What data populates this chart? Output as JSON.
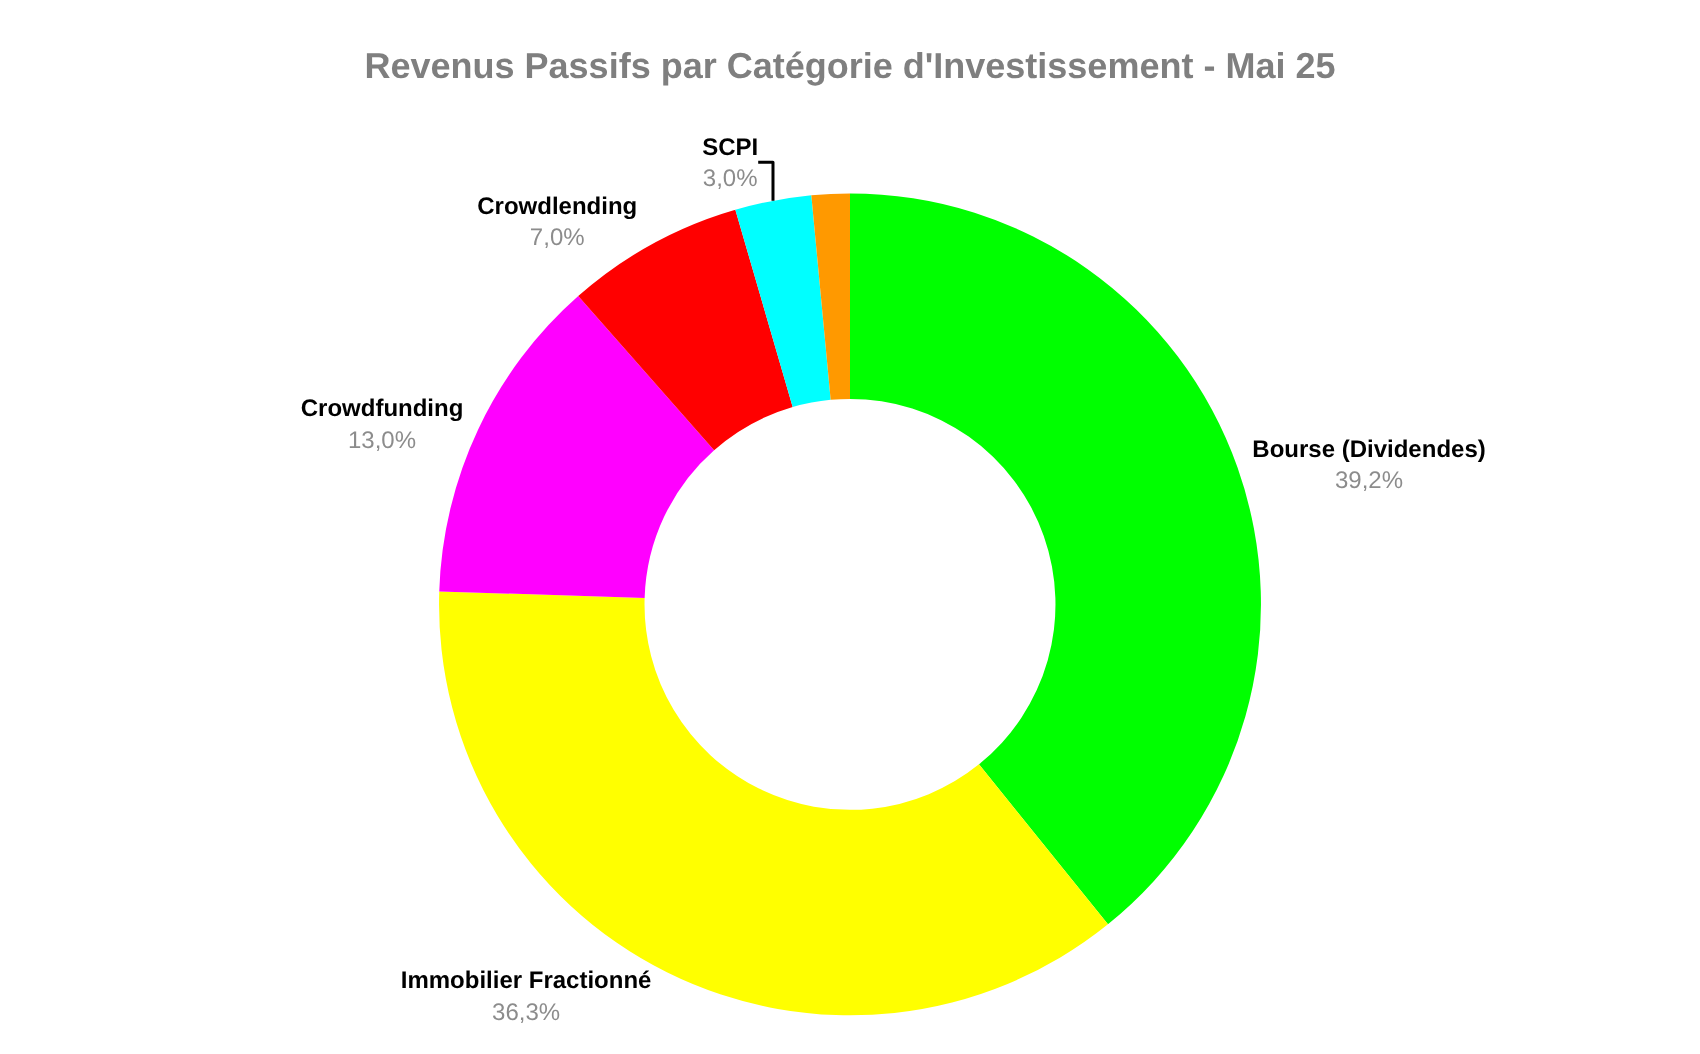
{
  "chart_data": {
    "type": "donut",
    "title": "Revenus Passifs par Catégorie d'Investissement - Mai 25",
    "categories": [
      "Bourse (Dividendes)",
      "Immobilier Fractionné",
      "Crowdfunding",
      "Crowdlending",
      "SCPI",
      null
    ],
    "values": [
      39.2,
      36.3,
      13.0,
      7.0,
      3.0,
      1.5
    ],
    "value_labels": [
      "39,2%",
      "36,3%",
      "13,0%",
      "7,0%",
      "3,0%",
      null
    ],
    "colors": [
      "#00ff00",
      "#ffff00",
      "#ff00ff",
      "#ff0000",
      "#00ffff",
      "#ff9900"
    ],
    "legend": false
  }
}
